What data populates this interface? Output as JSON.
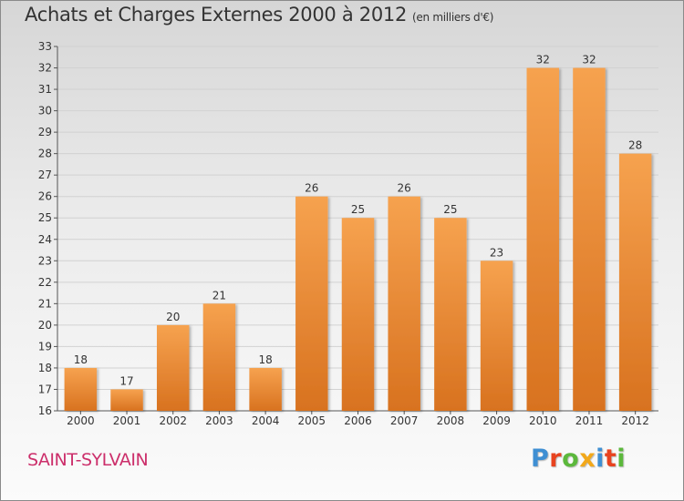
{
  "header": {
    "title": "Achats et Charges Externes 2000 à 2012",
    "subtitle": "(en milliers d'€)"
  },
  "footer": {
    "town": "SAINT-SYLVAIN",
    "logo": [
      "P",
      "r",
      "o",
      "x",
      "i",
      "t",
      "i"
    ],
    "logo_colors": [
      "#3f8fd3",
      "#e8431f",
      "#5cb83c",
      "#f2a81a",
      "#3f8fd3",
      "#e8431f",
      "#5cb83c"
    ]
  },
  "colors": {
    "bar_light": "#f6a24f",
    "bar_dark": "#d8721f",
    "grid": "#d2d2d2",
    "title": "#333333",
    "town": "#cc2f6b"
  },
  "chart_data": {
    "type": "bar",
    "title": "Achats et Charges Externes 2000 à 2012",
    "subtitle": "(en milliers d'€)",
    "categories": [
      "2000",
      "2001",
      "2002",
      "2003",
      "2004",
      "2005",
      "2006",
      "2007",
      "2008",
      "2009",
      "2010",
      "2011",
      "2012"
    ],
    "values": [
      18,
      17,
      20,
      21,
      18,
      26,
      25,
      26,
      25,
      23,
      32,
      32,
      28
    ],
    "ylim": [
      16,
      33
    ],
    "yticks": [
      16,
      17,
      18,
      19,
      20,
      21,
      22,
      23,
      24,
      25,
      26,
      27,
      28,
      29,
      30,
      31,
      32,
      33
    ],
    "grid": true,
    "legend": "none"
  }
}
